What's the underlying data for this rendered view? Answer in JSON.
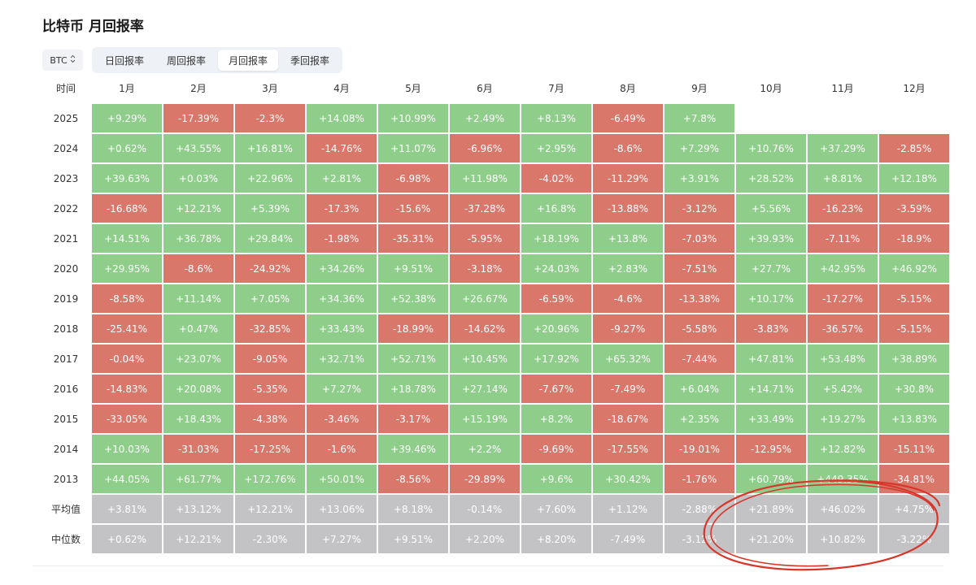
{
  "title": "比特币 月回报率",
  "asset": {
    "value": "BTC",
    "icon": "up-down-chevron-icon"
  },
  "tabs": [
    {
      "label": "日回报率",
      "active": false
    },
    {
      "label": "周回报率",
      "active": false
    },
    {
      "label": "月回报率",
      "active": true
    },
    {
      "label": "季回报率",
      "active": false
    }
  ],
  "table": {
    "corner": "时间",
    "months": [
      "1月",
      "2月",
      "3月",
      "4月",
      "5月",
      "6月",
      "7月",
      "8月",
      "9月",
      "10月",
      "11月",
      "12月"
    ],
    "rows": [
      {
        "label": "2025",
        "cells": [
          "+9.29%",
          "-17.39%",
          "-2.3%",
          "+14.08%",
          "+10.99%",
          "+2.49%",
          "+8.13%",
          "-6.49%",
          "+7.8%",
          "",
          "",
          ""
        ]
      },
      {
        "label": "2024",
        "cells": [
          "+0.62%",
          "+43.55%",
          "+16.81%",
          "-14.76%",
          "+11.07%",
          "-6.96%",
          "+2.95%",
          "-8.6%",
          "+7.29%",
          "+10.76%",
          "+37.29%",
          "-2.85%"
        ]
      },
      {
        "label": "2023",
        "cells": [
          "+39.63%",
          "+0.03%",
          "+22.96%",
          "+2.81%",
          "-6.98%",
          "+11.98%",
          "-4.02%",
          "-11.29%",
          "+3.91%",
          "+28.52%",
          "+8.81%",
          "+12.18%"
        ]
      },
      {
        "label": "2022",
        "cells": [
          "-16.68%",
          "+12.21%",
          "+5.39%",
          "-17.3%",
          "-15.6%",
          "-37.28%",
          "+16.8%",
          "-13.88%",
          "-3.12%",
          "+5.56%",
          "-16.23%",
          "-3.59%"
        ]
      },
      {
        "label": "2021",
        "cells": [
          "+14.51%",
          "+36.78%",
          "+29.84%",
          "-1.98%",
          "-35.31%",
          "-5.95%",
          "+18.19%",
          "+13.8%",
          "-7.03%",
          "+39.93%",
          "-7.11%",
          "-18.9%"
        ]
      },
      {
        "label": "2020",
        "cells": [
          "+29.95%",
          "-8.6%",
          "-24.92%",
          "+34.26%",
          "+9.51%",
          "-3.18%",
          "+24.03%",
          "+2.83%",
          "-7.51%",
          "+27.7%",
          "+42.95%",
          "+46.92%"
        ]
      },
      {
        "label": "2019",
        "cells": [
          "-8.58%",
          "+11.14%",
          "+7.05%",
          "+34.36%",
          "+52.38%",
          "+26.67%",
          "-6.59%",
          "-4.6%",
          "-13.38%",
          "+10.17%",
          "-17.27%",
          "-5.15%"
        ]
      },
      {
        "label": "2018",
        "cells": [
          "-25.41%",
          "+0.47%",
          "-32.85%",
          "+33.43%",
          "-18.99%",
          "-14.62%",
          "+20.96%",
          "-9.27%",
          "-5.58%",
          "-3.83%",
          "-36.57%",
          "-5.15%"
        ]
      },
      {
        "label": "2017",
        "cells": [
          "-0.04%",
          "+23.07%",
          "-9.05%",
          "+32.71%",
          "+52.71%",
          "+10.45%",
          "+17.92%",
          "+65.32%",
          "-7.44%",
          "+47.81%",
          "+53.48%",
          "+38.89%"
        ]
      },
      {
        "label": "2016",
        "cells": [
          "-14.83%",
          "+20.08%",
          "-5.35%",
          "+7.27%",
          "+18.78%",
          "+27.14%",
          "-7.67%",
          "-7.49%",
          "+6.04%",
          "+14.71%",
          "+5.42%",
          "+30.8%"
        ]
      },
      {
        "label": "2015",
        "cells": [
          "-33.05%",
          "+18.43%",
          "-4.38%",
          "-3.46%",
          "-3.17%",
          "+15.19%",
          "+8.2%",
          "-18.67%",
          "+2.35%",
          "+33.49%",
          "+19.27%",
          "+13.83%"
        ]
      },
      {
        "label": "2014",
        "cells": [
          "+10.03%",
          "-31.03%",
          "-17.25%",
          "-1.6%",
          "+39.46%",
          "+2.2%",
          "-9.69%",
          "-17.55%",
          "-19.01%",
          "-12.95%",
          "+12.82%",
          "-15.11%"
        ]
      },
      {
        "label": "2013",
        "cells": [
          "+44.05%",
          "+61.77%",
          "+172.76%",
          "+50.01%",
          "-8.56%",
          "-29.89%",
          "+9.6%",
          "+30.42%",
          "-1.76%",
          "+60.79%",
          "+449.35%",
          "-34.81%"
        ]
      },
      {
        "label": "平均值",
        "stat": true,
        "cells": [
          "+3.81%",
          "+13.12%",
          "+12.21%",
          "+13.06%",
          "+8.18%",
          "-0.14%",
          "+7.60%",
          "+1.12%",
          "-2.88%",
          "+21.89%",
          "+46.02%",
          "+4.75%"
        ]
      },
      {
        "label": "中位数",
        "stat": true,
        "cells": [
          "+0.62%",
          "+12.21%",
          "-2.30%",
          "+7.27%",
          "+9.51%",
          "+2.20%",
          "+8.20%",
          "-7.49%",
          "-3.12%",
          "+21.20%",
          "+10.82%",
          "-3.22%"
        ]
      }
    ]
  },
  "colors": {
    "positive": "#8fcd8b",
    "negative": "#d9776b",
    "stat": "#c3c3c6",
    "annotation": "#d9362b"
  }
}
